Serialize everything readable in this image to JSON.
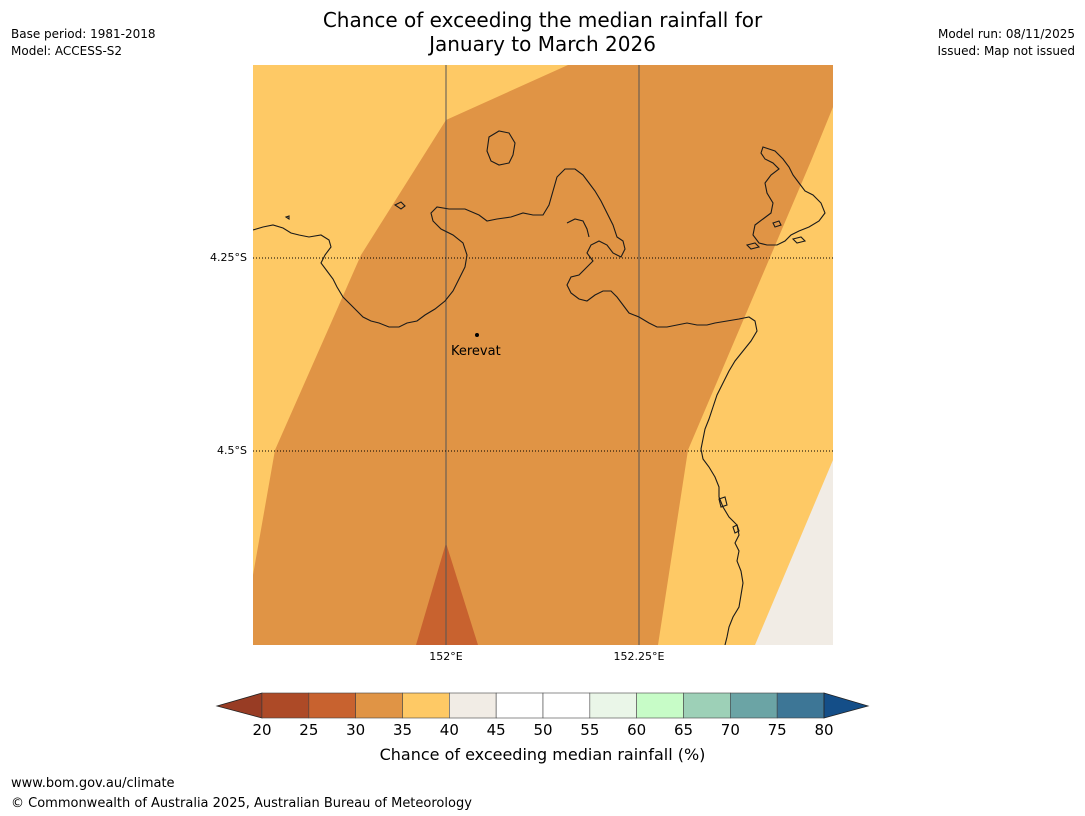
{
  "header": {
    "title_line1": "Chance of exceeding the median rainfall for",
    "title_line2": "January to March 2026",
    "base_period": "Base period: 1981-2018",
    "model": "Model: ACCESS-S2",
    "model_run": "Model run: 08/11/2025",
    "issued": "Issued: Map not issued"
  },
  "map": {
    "lat_labels": [
      "4.25°S",
      "4.5°S"
    ],
    "lon_labels": [
      "152°E",
      "152.25°E"
    ],
    "place": {
      "name": "Kerevat"
    }
  },
  "legend": {
    "title": "Chance of exceeding median rainfall (%)",
    "ticks": [
      "20",
      "25",
      "30",
      "35",
      "40",
      "45",
      "50",
      "55",
      "60",
      "65",
      "70",
      "75",
      "80"
    ],
    "under_color": "#983c24",
    "over_color": "#144e88",
    "colors": [
      "#ad4a27",
      "#c8622f",
      "#e09445",
      "#fec965",
      "#f1ece5",
      "#ffffff",
      "#ffffff",
      "#eaf6e8",
      "#c7fcc7",
      "#9dd0b7",
      "#6ba4a5",
      "#3d7696"
    ]
  },
  "footer": {
    "url": "www.bom.gov.au/climate",
    "copyright": "© Commonwealth of Australia 2025, Australian Bureau of Meteorology"
  }
}
